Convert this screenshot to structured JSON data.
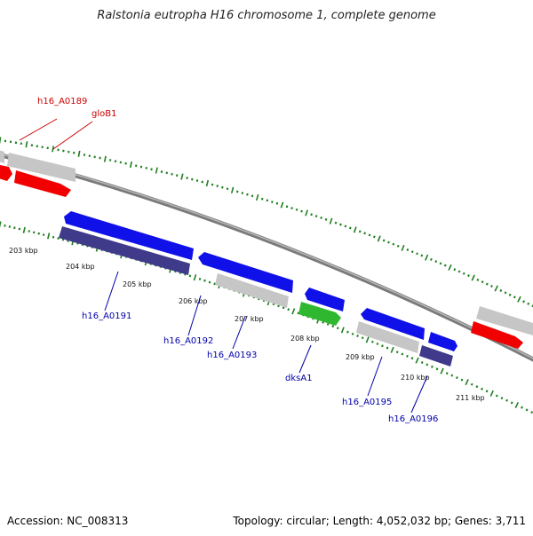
{
  "title": "Ralstonia eutropha H16 chromosome 1, complete genome",
  "footer": {
    "accession": "Accession: NC_008313",
    "stats": "Topology: circular; Length: 4,052,032 bp; Genes: 3,711"
  },
  "colors": {
    "forward_gene": "#1010e8",
    "reverse_gene": "#3f3a8a",
    "pseudo_gray": "#c6c6c6",
    "rna_green": "#2fb82f",
    "highlight_red": "#f00000",
    "tick_green": "#1f7f1f",
    "backbone": "#7a7a7a",
    "label_blue": "#0000aa",
    "label_red": "#cc0000"
  },
  "ticks": [
    {
      "label": "203 kbp"
    },
    {
      "label": "204 kbp"
    },
    {
      "label": "205 kbp"
    },
    {
      "label": "206 kbp"
    },
    {
      "label": "207 kbp"
    },
    {
      "label": "208 kbp"
    },
    {
      "label": "209 kbp"
    },
    {
      "label": "210 kbp"
    },
    {
      "label": "211 kbp"
    }
  ],
  "gene_labels": [
    {
      "name": "h16_A0189",
      "color": "red"
    },
    {
      "name": "gloB1",
      "color": "red"
    },
    {
      "name": "h16_A0191",
      "color": "blue"
    },
    {
      "name": "h16_A0192",
      "color": "blue"
    },
    {
      "name": "h16_A0193",
      "color": "blue"
    },
    {
      "name": "dksA1",
      "color": "blue"
    },
    {
      "name": "h16_A0195",
      "color": "blue"
    },
    {
      "name": "h16_A0196",
      "color": "blue"
    }
  ]
}
